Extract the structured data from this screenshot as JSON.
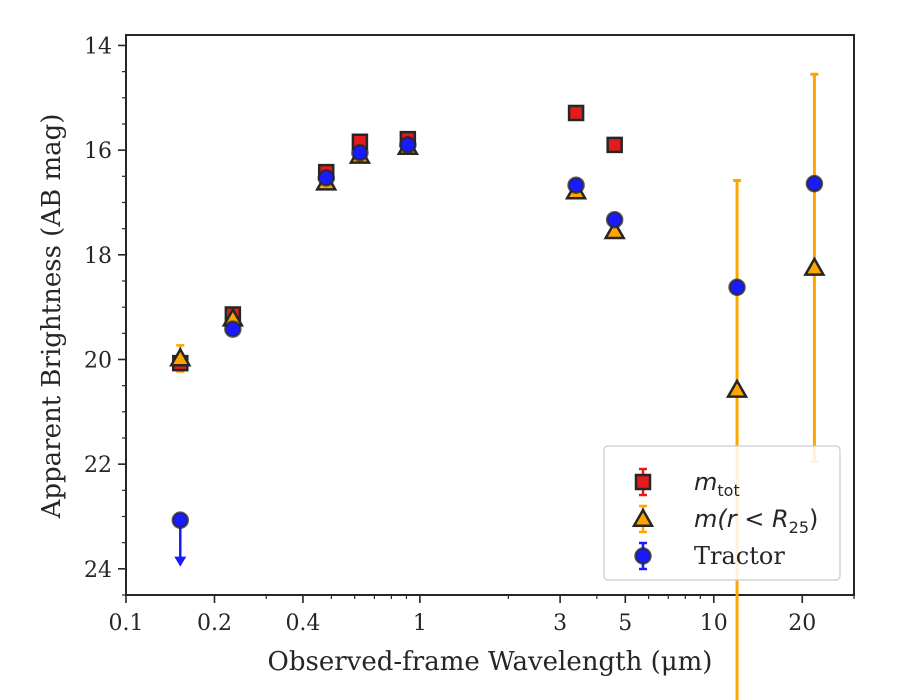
{
  "chart_data": {
    "type": "scatter",
    "title": "",
    "xlabel": "Observed-frame Wavelength (μm)",
    "ylabel": "Apparent Brightness (AB mag)",
    "xscale": "log",
    "xlim": [
      0.1,
      30
    ],
    "ylim": [
      24.5,
      13.8
    ],
    "y_inverted": true,
    "grid": false,
    "legend_placement": "lower-right",
    "x_ticks": [
      {
        "value": 0.1,
        "label": "0.1"
      },
      {
        "value": 0.2,
        "label": "0.2"
      },
      {
        "value": 0.4,
        "label": "0.4"
      },
      {
        "value": 1,
        "label": "1"
      },
      {
        "value": 3,
        "label": "3"
      },
      {
        "value": 5,
        "label": "5"
      },
      {
        "value": 10,
        "label": "10"
      },
      {
        "value": 20,
        "label": "20"
      }
    ],
    "y_ticks": [
      {
        "value": 14,
        "label": "14"
      },
      {
        "value": 16,
        "label": "16"
      },
      {
        "value": 18,
        "label": "18"
      },
      {
        "value": 20,
        "label": "20"
      },
      {
        "value": 22,
        "label": "22"
      },
      {
        "value": 24,
        "label": "24"
      }
    ],
    "series": [
      {
        "name": "m_tot",
        "legend_main": "m",
        "legend_sub": "tot",
        "marker": "square",
        "color": "#e41a1c",
        "edge": "#262626",
        "points": [
          {
            "x": 0.153,
            "y": 20.07,
            "err": 0.12
          },
          {
            "x": 0.231,
            "y": 19.14,
            "err": 0.05
          },
          {
            "x": 0.48,
            "y": 16.42,
            "err": 0.03
          },
          {
            "x": 0.625,
            "y": 15.84,
            "err": 0.03
          },
          {
            "x": 0.91,
            "y": 15.79,
            "err": 0.03
          },
          {
            "x": 3.4,
            "y": 15.29,
            "err": 0.03
          },
          {
            "x": 4.6,
            "y": 15.9,
            "err": 0.03
          }
        ]
      },
      {
        "name": "m(r < R25)",
        "legend_text": "m(r < R",
        "legend_sub": "25",
        "legend_close": ")",
        "marker": "triangle",
        "color": "#ffa500",
        "edge": "#262626",
        "points": [
          {
            "x": 0.153,
            "y": 19.98,
            "err": 0.25
          },
          {
            "x": 0.231,
            "y": 19.22,
            "err": 0.08
          },
          {
            "x": 0.48,
            "y": 16.62,
            "err": 0.03
          },
          {
            "x": 0.625,
            "y": 16.11,
            "err": 0.03
          },
          {
            "x": 0.91,
            "y": 15.94,
            "err": 0.03
          },
          {
            "x": 3.4,
            "y": 16.79,
            "err": 0.03
          },
          {
            "x": 4.6,
            "y": 17.55,
            "err": 0.03
          },
          {
            "x": 12.0,
            "y": 20.58,
            "err_lo": 6.4,
            "err_hi": 4.0
          },
          {
            "x": 22.0,
            "y": 18.25,
            "err_lo": 3.7,
            "err_hi": 3.7
          }
        ]
      },
      {
        "name": "Tractor",
        "marker": "circle",
        "color": "#1a1aff",
        "edge": "#262626",
        "points": [
          {
            "x": 0.153,
            "y": 23.07,
            "upper_limit": true
          },
          {
            "x": 0.231,
            "y": 19.42,
            "err": 0.05
          },
          {
            "x": 0.48,
            "y": 16.53,
            "err": 0.03
          },
          {
            "x": 0.625,
            "y": 16.05,
            "err": 0.03
          },
          {
            "x": 0.91,
            "y": 15.9,
            "err": 0.03
          },
          {
            "x": 3.4,
            "y": 16.67,
            "err": 0.03
          },
          {
            "x": 4.6,
            "y": 17.33,
            "err": 0.03
          },
          {
            "x": 12.0,
            "y": 18.62,
            "err": 0.05
          },
          {
            "x": 22.0,
            "y": 16.64,
            "err": 0.05
          }
        ]
      }
    ]
  }
}
